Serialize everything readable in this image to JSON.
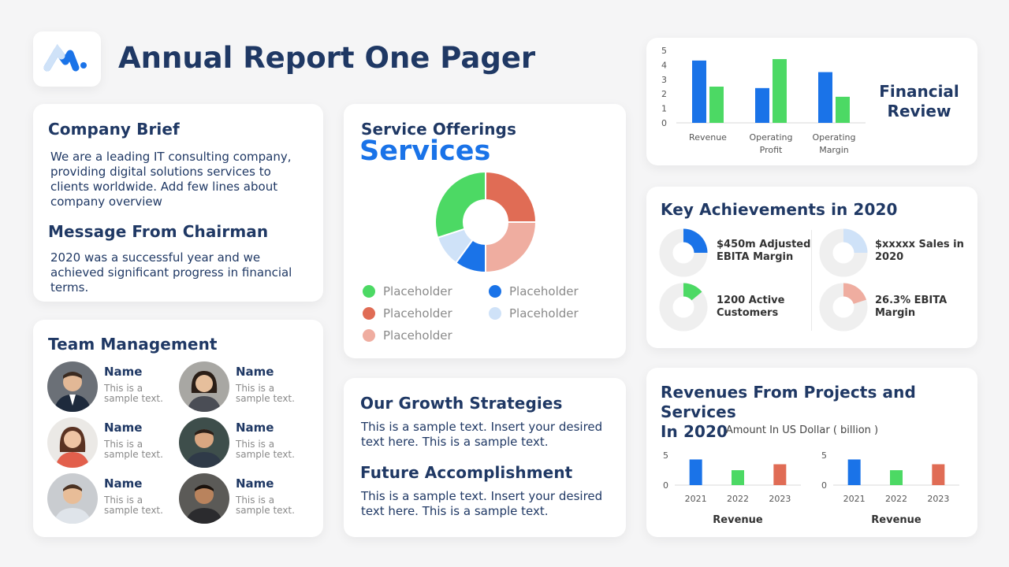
{
  "header": {
    "title": "Annual Report One Pager",
    "logo": "m-logo"
  },
  "company_brief": {
    "title": "Company Brief",
    "text": "We are a leading IT consulting company, providing digital solutions services to clients worldwide. Add few lines about company overview",
    "chairman_title": "Message From Chairman",
    "chairman_text": "2020 was a successful year and we achieved significant progress in financial terms."
  },
  "services": {
    "title": "Service Offerings",
    "subtitle": "Services",
    "legend": [
      {
        "label": "Placeholder",
        "color": "#4cd964"
      },
      {
        "label": "Placeholder",
        "color": "#1a73e8"
      },
      {
        "label": "Placeholder",
        "color": "#e06c55"
      },
      {
        "label": "Placeholder",
        "color": "#cfe2f8"
      },
      {
        "label": "Placeholder",
        "color": "#efada0"
      }
    ]
  },
  "team": {
    "title": "Team Management",
    "members": [
      {
        "name": "Name",
        "text": "This is a sample text."
      },
      {
        "name": "Name",
        "text": "This is a sample text."
      },
      {
        "name": "Name",
        "text": "This is a sample text."
      },
      {
        "name": "Name",
        "text": "This is a sample text."
      },
      {
        "name": "Name",
        "text": "This is a sample text."
      },
      {
        "name": "Name",
        "text": "This is a sample text."
      }
    ]
  },
  "growth": {
    "title": "Our Growth Strategies",
    "text": "This is a sample text.  Insert your desired text here. This is a sample text.",
    "future_title": "Future Accomplishment",
    "future_text": "This is a sample text.  Insert your desired text here. This is a sample text."
  },
  "financial": {
    "title_line1": "Financial",
    "title_line2": "Review"
  },
  "achievements": {
    "title": "Key Achievements  in 2020",
    "items": [
      {
        "label": "$450m Adjusted EBITA Margin",
        "value": 0.25,
        "color": "#1a73e8"
      },
      {
        "label": "$xxxxx Sales in 2020",
        "value": 0.25,
        "color": "#cfe2f8"
      },
      {
        "label": "1200 Active Customers",
        "value": 0.14,
        "color": "#4cd964"
      },
      {
        "label": "26.3% EBITA Margin",
        "value": 0.2,
        "color": "#efada0"
      }
    ]
  },
  "revenues": {
    "title_line1": "Revenues From Projects and Services",
    "title_line2": "In 2020",
    "subtitle": "Amount In US Dollar ( billion )"
  },
  "chart_data": [
    {
      "type": "pie",
      "categories": [
        "Placeholder",
        "Placeholder",
        "Placeholder",
        "Placeholder",
        "Placeholder"
      ],
      "values": [
        25,
        25,
        10,
        10,
        30
      ],
      "colors": [
        "#e06c55",
        "#efada0",
        "#1a73e8",
        "#cfe2f8",
        "#4cd964"
      ],
      "donut": true
    },
    {
      "type": "bar",
      "categories": [
        "Revenue",
        "Operating Profit",
        "Operating Margin"
      ],
      "series": [
        {
          "values": [
            4.3,
            2.4,
            3.5
          ],
          "color": "#1a73e8"
        },
        {
          "values": [
            2.5,
            4.4,
            1.8
          ],
          "color": "#4cd964"
        }
      ],
      "ylim": [
        0,
        5
      ],
      "yticks": [
        "0",
        "1",
        "2",
        "3",
        "4",
        "5"
      ]
    },
    {
      "type": "bar",
      "categories": [
        "2021",
        "2022",
        "2023"
      ],
      "values": [
        4.3,
        2.5,
        3.5
      ],
      "colors": [
        "#1a73e8",
        "#4cd964",
        "#e06c55"
      ],
      "xlabel": "Revenue",
      "ylim": [
        0,
        7
      ],
      "yticks": [
        "0",
        "5"
      ]
    },
    {
      "type": "bar",
      "categories": [
        "2021",
        "2022",
        "2023"
      ],
      "values": [
        4.3,
        2.5,
        3.5
      ],
      "colors": [
        "#1a73e8",
        "#4cd964",
        "#e06c55"
      ],
      "xlabel": "Revenue",
      "ylim": [
        0,
        7
      ],
      "yticks": [
        "0",
        "5"
      ]
    }
  ]
}
